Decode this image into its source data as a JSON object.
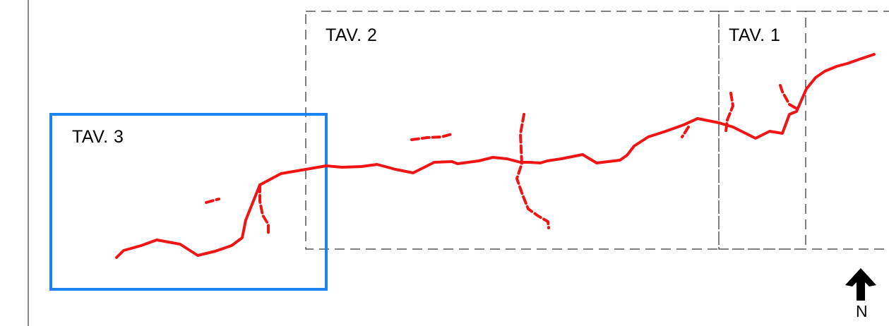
{
  "sheets": {
    "tav1": {
      "label": "TAV. 1"
    },
    "tav2": {
      "label": "TAV. 2"
    },
    "tav3": {
      "label": "TAV. 3"
    }
  },
  "north_arrow": {
    "icon": "north-arrow-icon",
    "label": "N"
  },
  "colors": {
    "route": "#f01414",
    "highlight_frame": "#1e82f0",
    "sheet_frame": "#000000",
    "text": "#000000"
  }
}
